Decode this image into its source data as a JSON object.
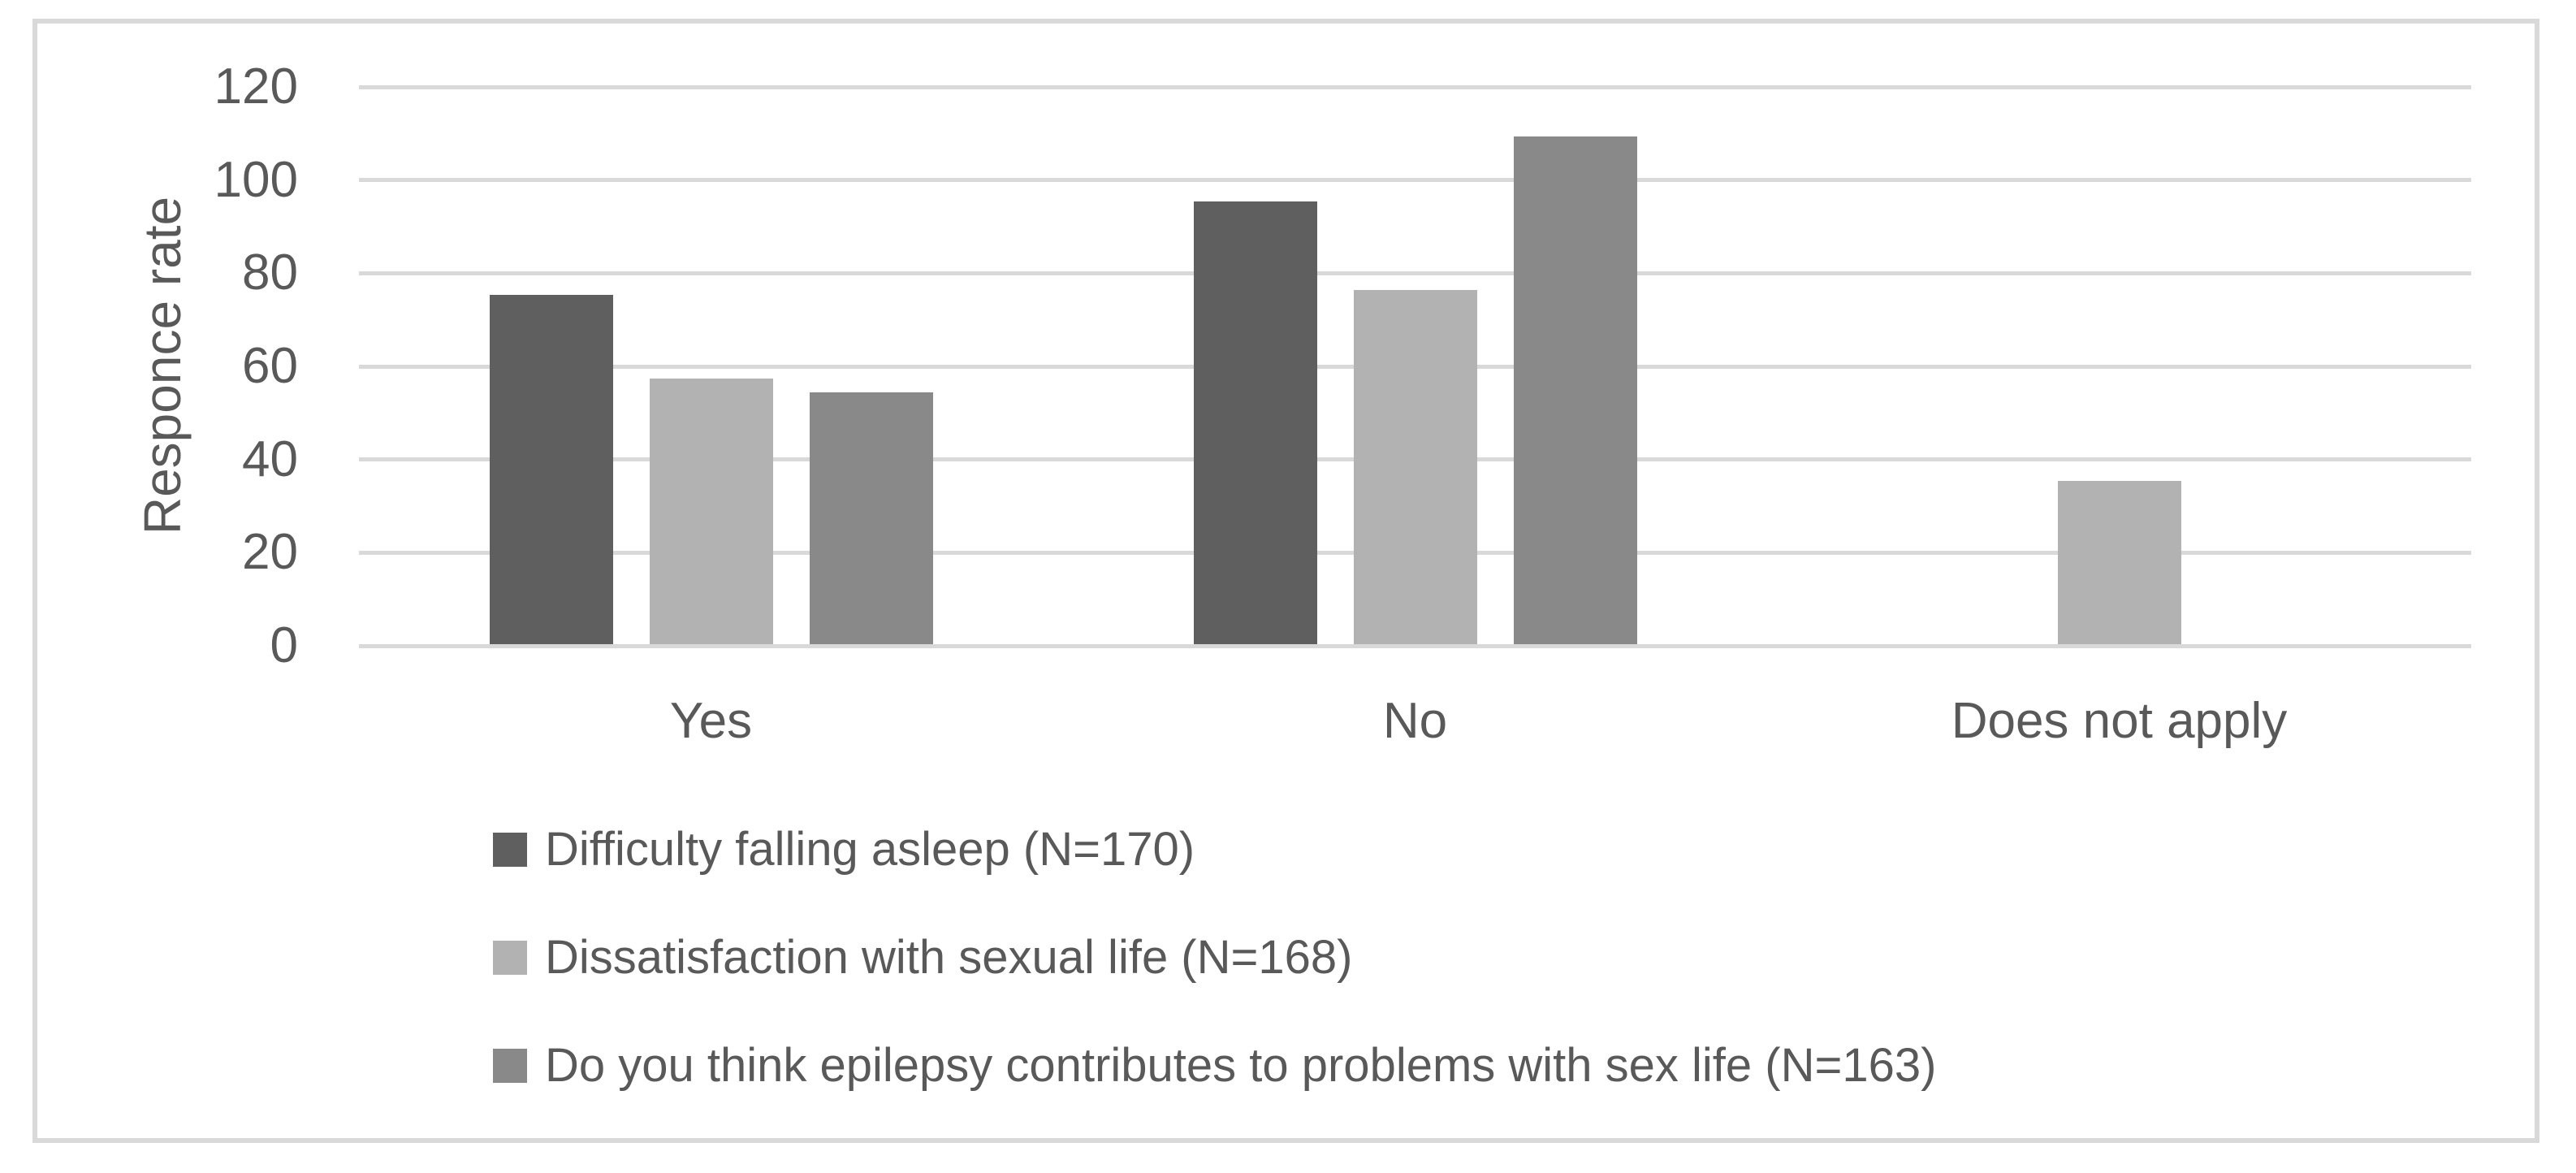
{
  "chart_data": {
    "type": "bar",
    "categories": [
      "Yes",
      "No",
      "Does not apply"
    ],
    "series": [
      {
        "name": "Difficulty falling asleep (N=170)",
        "color": "#5f5f5f",
        "values": [
          75,
          95,
          0
        ]
      },
      {
        "name": "Dissatisfaction with sexual life (N=168)",
        "color": "#b2b2b2",
        "values": [
          57,
          76,
          35
        ]
      },
      {
        "name": "Do you think epilepsy contributes to problems with sex life (N=163)",
        "color": "#898989",
        "values": [
          54,
          109,
          0
        ]
      }
    ],
    "title": "",
    "xlabel": "",
    "ylabel": "Responce rate",
    "yticks": [
      0,
      20,
      40,
      60,
      80,
      100,
      120
    ],
    "ylim": [
      0,
      120
    ],
    "grid": true,
    "legend_position": "bottom-left"
  },
  "colors": {
    "gridline": "#d9d9d9",
    "frame_border": "#d9d9d9",
    "text": "#595959",
    "background": "#ffffff"
  }
}
